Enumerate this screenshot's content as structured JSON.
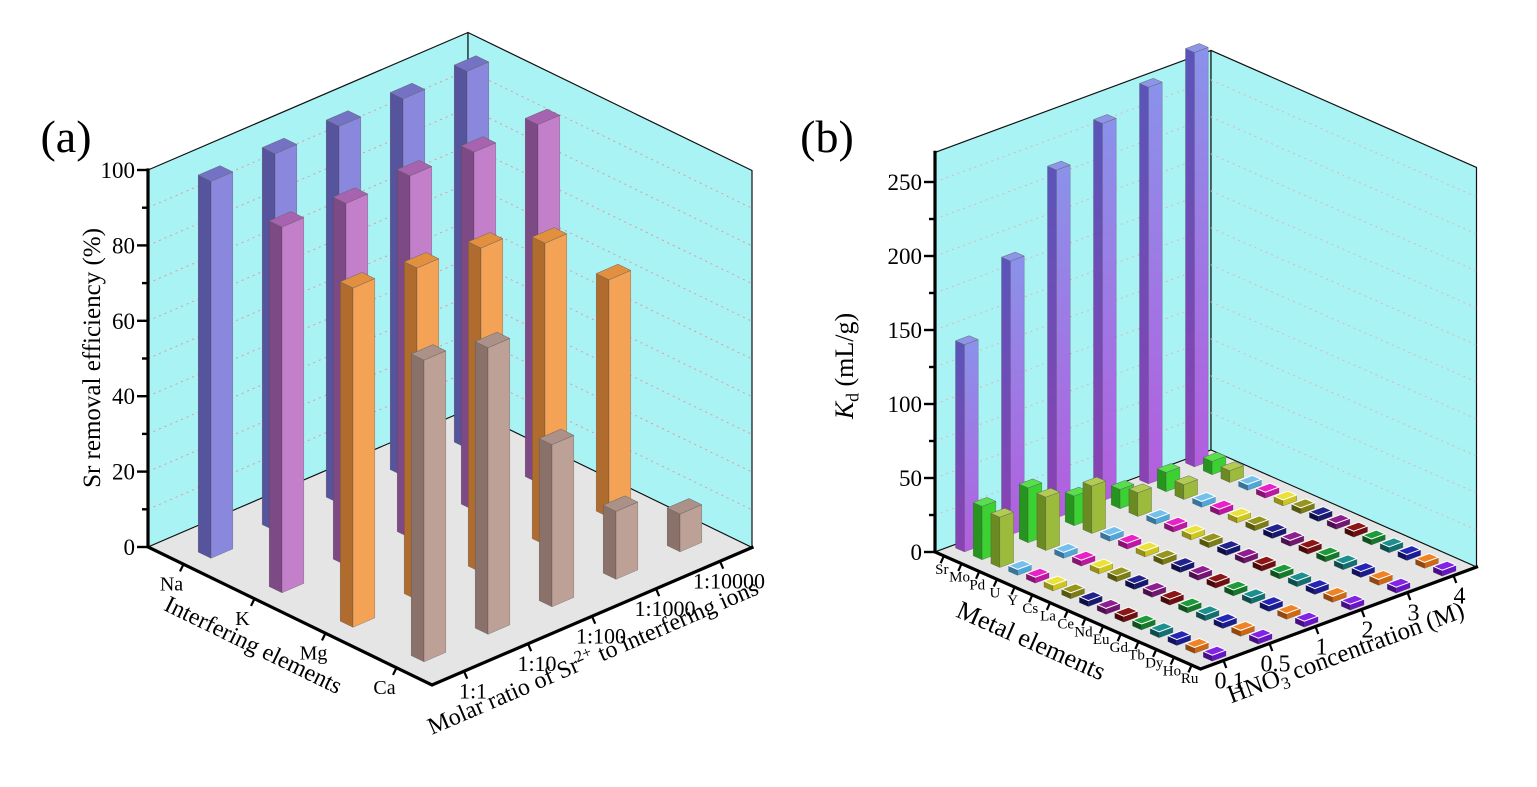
{
  "figure": {
    "description": "Two-panel 3D bar figure",
    "panel_labels": [
      "(a)",
      "(b)"
    ]
  },
  "chart_data": [
    {
      "id": "a",
      "type": "bar",
      "panel_label": "(a)",
      "z_axis": {
        "title_parts": [
          {
            "t": "Sr removal efficiency (%)"
          }
        ],
        "ticks": [
          0,
          20,
          40,
          60,
          80,
          100
        ],
        "minor_step": 10,
        "max": 100
      },
      "x_axis": {
        "title_parts": [
          {
            "t": "Interfering elements"
          }
        ],
        "categories": [
          "Na",
          "K",
          "Mg",
          "Ca"
        ]
      },
      "y_axis": {
        "title_parts": [
          {
            "t": "Molar ratio of Sr"
          },
          {
            "t": "2+",
            "sup": true
          },
          {
            "t": " to interfering ions"
          }
        ],
        "categories": [
          "1:1",
          "1:10",
          "1:100",
          "1:1000",
          "1:10000"
        ]
      },
      "zlim": [
        0,
        100
      ],
      "grid": {
        "step": 10,
        "max": 90
      },
      "colors": {
        "wall": "#aaf3f5",
        "floor": "#e5e5e5",
        "grid": "#e09a9a"
      },
      "series": [
        {
          "name": "Na",
          "values": [
            100,
            100,
            100,
            100,
            100
          ],
          "color": {
            "light": "#8a88dd",
            "dark": "#56549c",
            "top": "#7472c4"
          }
        },
        {
          "name": "K",
          "values": [
            97,
            96,
            96,
            95,
            95
          ],
          "color": {
            "light": "#c37fca",
            "dark": "#7e4a85",
            "top": "#a763b0"
          }
        },
        {
          "name": "Mg",
          "values": [
            90,
            88,
            86,
            80,
            63
          ],
          "color": {
            "light": "#f3a256",
            "dark": "#b06c2e",
            "top": "#e2903d"
          }
        },
        {
          "name": "Ca",
          "values": [
            80,
            76,
            43,
            18,
            10
          ],
          "color": {
            "light": "#bda197",
            "dark": "#8a726a",
            "top": "#ab9188"
          }
        }
      ]
    },
    {
      "id": "b",
      "type": "bar",
      "panel_label": "(b)",
      "z_axis": {
        "title_parts": [
          {
            "t": "K",
            "italic": true
          },
          {
            "t": "d",
            "sub": true
          },
          {
            "t": " (mL/g)"
          }
        ],
        "ticks": [
          0,
          50,
          100,
          150,
          200,
          250
        ],
        "minor_step": 25,
        "max": 250
      },
      "x_axis": {
        "title_parts": [
          {
            "t": "Metal elements"
          }
        ],
        "categories": [
          "Sr",
          "Mo",
          "Pd",
          "U",
          "Y",
          "Cs",
          "La",
          "Ce",
          "Nd",
          "Eu",
          "Gd",
          "Tb",
          "Dy",
          "Ho",
          "Ru"
        ]
      },
      "y_axis": {
        "title_parts": [
          {
            "t": "HNO"
          },
          {
            "t": "3",
            "sub": true
          },
          {
            "t": " concentration (M)"
          }
        ],
        "categories": [
          "0.1",
          "0.5",
          "1",
          "2",
          "3",
          "4"
        ]
      },
      "zlim": [
        0,
        250
      ],
      "grid": {
        "step": 25,
        "max": 250
      },
      "colors": {
        "wall": "#aaf3f5",
        "floor": "#e5e5e5",
        "grid": "#dcb6b6"
      },
      "series": [
        {
          "name": "Sr",
          "values": [
            140,
            185,
            235,
            255,
            268,
            280
          ],
          "color": {
            "light": [
              "#8a92ea",
              "#b35ede"
            ],
            "dark": [
              "#5a55b8",
              "#8a42b2"
            ],
            "top": "#8d95e8"
          }
        },
        {
          "name": "Mo",
          "values": [
            36,
            37,
            20,
            13,
            13,
            9
          ],
          "color": {
            "light": "#3bd133",
            "dark": "#27941f",
            "top": "#55e04c"
          }
        },
        {
          "name": "Pd",
          "values": [
            34,
            36,
            32,
            16,
            10,
            8
          ],
          "color": {
            "light": "#9cba3c",
            "dark": "#6a8a22",
            "top": "#b2cc52"
          }
        },
        {
          "name": "U",
          "values": [
            4,
            4,
            4,
            4,
            4,
            4
          ],
          "flat": true,
          "color": {
            "light": "#4fa6d8",
            "dark": "#33769e",
            "top": "#74c0ea"
          }
        },
        {
          "name": "Y",
          "values": [
            4,
            4,
            4,
            4,
            4,
            4
          ],
          "flat": true,
          "color": {
            "light": "#c016a4",
            "dark": "#891074",
            "top": "#e822c6"
          }
        },
        {
          "name": "Cs",
          "values": [
            4,
            4,
            4,
            4,
            4,
            4
          ],
          "flat": true,
          "color": {
            "light": "#cec61e",
            "dark": "#969014",
            "top": "#eae238"
          }
        },
        {
          "name": "La",
          "values": [
            4,
            4,
            4,
            4,
            4,
            4
          ],
          "flat": true,
          "color": {
            "light": "#7c7c15",
            "dark": "#57570c",
            "top": "#96961f"
          }
        },
        {
          "name": "Ce",
          "values": [
            4,
            4,
            4,
            4,
            4,
            4
          ],
          "flat": true,
          "color": {
            "light": "#18186e",
            "dark": "#0e0e46",
            "top": "#23238e"
          }
        },
        {
          "name": "Nd",
          "values": [
            4,
            4,
            4,
            4,
            4,
            4
          ],
          "flat": true,
          "color": {
            "light": "#731572",
            "dark": "#4e0d4e",
            "top": "#8f1e90"
          }
        },
        {
          "name": "Eu",
          "values": [
            4,
            4,
            4,
            4,
            4,
            4
          ],
          "flat": true,
          "color": {
            "light": "#6f0f0f",
            "dark": "#4a0808",
            "top": "#8c1515"
          }
        },
        {
          "name": "Gd",
          "values": [
            4,
            4,
            4,
            4,
            4,
            4
          ],
          "flat": true,
          "color": {
            "light": "#147a2a",
            "dark": "#0c521a",
            "top": "#1e9a3a"
          }
        },
        {
          "name": "Tb",
          "values": [
            4,
            4,
            4,
            4,
            4,
            4
          ],
          "flat": true,
          "color": {
            "light": "#137070",
            "dark": "#0b4c4c",
            "top": "#1e8f8f"
          }
        },
        {
          "name": "Dy",
          "values": [
            4,
            4,
            4,
            4,
            4,
            4
          ],
          "flat": true,
          "color": {
            "light": "#1b1b92",
            "dark": "#111162",
            "top": "#2626b4"
          }
        },
        {
          "name": "Ho",
          "values": [
            4,
            4,
            4,
            4,
            4,
            4
          ],
          "flat": true,
          "color": {
            "light": "#cf6812",
            "dark": "#96470a",
            "top": "#ef8326"
          }
        },
        {
          "name": "Ru",
          "values": [
            4,
            4,
            4,
            4,
            4,
            4
          ],
          "flat": true,
          "color": {
            "light": "#6816c4",
            "dark": "#450e86",
            "top": "#8224e6"
          }
        }
      ]
    }
  ]
}
